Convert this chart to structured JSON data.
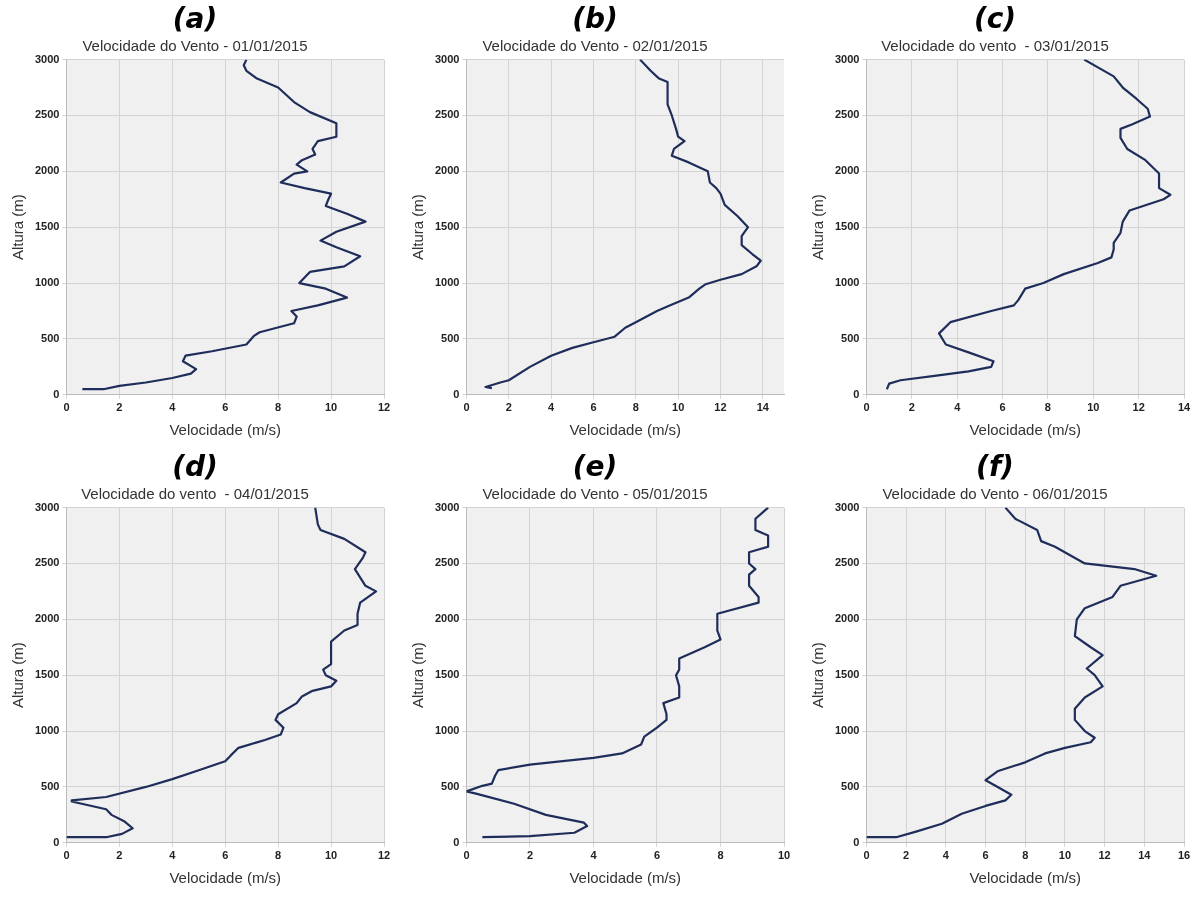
{
  "chart_data": [
    {
      "type": "line",
      "title": "(a)",
      "subtitle": "Velocidade do Vento - 01/01/2015",
      "xlabel": "Velocidade (m/s)",
      "ylabel": "Altura (m)",
      "xlim": [
        0,
        12
      ],
      "xticks": [
        0,
        2,
        4,
        6,
        8,
        10,
        12
      ],
      "ylim": [
        0,
        3000
      ],
      "yticks": [
        0,
        500,
        1000,
        1500,
        2000,
        2500,
        3000
      ],
      "grid": true,
      "marker": "none",
      "series": [
        {
          "color": "#1f2d5a",
          "x": [
            0.6,
            1.4,
            2,
            3,
            4,
            4.7,
            4.9,
            4.4,
            4.5,
            5.5,
            6.8,
            7.1,
            7.3,
            8.6,
            8.7,
            8.5,
            9.5,
            10.6,
            9.8,
            8.8,
            9.2,
            10.5,
            11.1,
            10.2,
            9.6,
            10.2,
            11.3,
            10.6,
            9.8,
            9.9,
            10,
            9,
            8.1,
            8.6,
            9.1,
            8.7,
            8.9,
            9.4,
            9.3,
            9.5,
            10.2,
            10.2,
            9.2,
            8.6,
            8,
            7.2,
            6.8,
            6.7,
            6.8
          ],
          "values": [
            50,
            50,
            80,
            110,
            150,
            190,
            230,
            300,
            350,
            390,
            450,
            530,
            560,
            640,
            700,
            750,
            800,
            870,
            950,
            1000,
            1100,
            1150,
            1240,
            1320,
            1380,
            1460,
            1550,
            1620,
            1690,
            1750,
            1800,
            1850,
            1900,
            1980,
            2000,
            2060,
            2100,
            2150,
            2200,
            2270,
            2310,
            2430,
            2530,
            2620,
            2750,
            2830,
            2900,
            2950,
            3000
          ]
        }
      ]
    },
    {
      "type": "line",
      "title": "(b)",
      "subtitle": "Velocidade do Vento - 02/01/2015",
      "xlabel": "Velocidade (m/s)",
      "ylabel": "Altura (m)",
      "xlim": [
        0,
        15
      ],
      "xticks": [
        0,
        2,
        4,
        6,
        8,
        10,
        12,
        14
      ],
      "ylim": [
        0,
        3000
      ],
      "yticks": [
        0,
        500,
        1000,
        1500,
        2000,
        2500,
        3000
      ],
      "grid": true,
      "marker": "none",
      "series": [
        {
          "color": "#1f2d5a",
          "x": [
            1.2,
            0.9,
            1.6,
            2,
            3,
            4,
            5,
            6,
            7,
            7.5,
            8,
            9,
            9.6,
            10.5,
            11,
            11.3,
            12,
            13,
            13.7,
            13.9,
            13.5,
            13,
            13,
            13.3,
            12.8,
            12.2,
            12,
            11.8,
            11.5,
            11.4,
            10.5,
            9.7,
            9.8,
            10.3,
            10,
            9.9,
            9.7,
            9.5,
            9.5,
            9.1,
            8.7,
            8.2
          ],
          "values": [
            60,
            70,
            110,
            130,
            250,
            350,
            420,
            470,
            520,
            600,
            650,
            750,
            800,
            870,
            950,
            990,
            1030,
            1080,
            1150,
            1200,
            1260,
            1340,
            1420,
            1500,
            1600,
            1700,
            1800,
            1850,
            1900,
            2000,
            2080,
            2140,
            2200,
            2270,
            2310,
            2380,
            2500,
            2600,
            2800,
            2830,
            2900,
            3000
          ]
        }
      ]
    },
    {
      "type": "line",
      "title": "(c)",
      "subtitle": "Velocidade do vento  - 03/01/2015",
      "xlabel": "Velocidade (m/s)",
      "ylabel": "Altura (m)",
      "xlim": [
        0,
        14
      ],
      "xticks": [
        0,
        2,
        4,
        6,
        8,
        10,
        12,
        14
      ],
      "ylim": [
        0,
        3000
      ],
      "yticks": [
        0,
        500,
        1000,
        1500,
        2000,
        2500,
        3000
      ],
      "grid": true,
      "marker": "none",
      "series": [
        {
          "color": "#1f2d5a",
          "x": [
            0.9,
            1,
            1.5,
            3,
            4.5,
            5.5,
            5.6,
            4.5,
            3.5,
            3.2,
            3.7,
            5.5,
            6.5,
            6.7,
            7,
            7.8,
            8.7,
            10.2,
            10.8,
            10.9,
            10.9,
            11.2,
            11.3,
            11.6,
            13.1,
            13.4,
            12.9,
            12.9,
            12.3,
            11.5,
            11.2,
            11.2,
            11.7,
            12.5,
            12.4,
            11.9,
            11.3,
            10.9,
            9.6
          ],
          "values": [
            50,
            100,
            130,
            170,
            210,
            250,
            300,
            380,
            450,
            550,
            650,
            750,
            800,
            850,
            950,
            1000,
            1080,
            1180,
            1230,
            1300,
            1360,
            1450,
            1550,
            1650,
            1750,
            1790,
            1850,
            1980,
            2100,
            2200,
            2300,
            2380,
            2420,
            2490,
            2560,
            2650,
            2750,
            2850,
            3000
          ]
        }
      ]
    },
    {
      "type": "line",
      "title": "(d)",
      "subtitle": "Velocidade do vento  - 04/01/2015",
      "xlabel": "Velocidade (m/s)",
      "ylabel": "Altura (m)",
      "xlim": [
        0,
        12
      ],
      "xticks": [
        0,
        2,
        4,
        6,
        8,
        10,
        12
      ],
      "ylim": [
        0,
        3000
      ],
      "yticks": [
        0,
        500,
        1000,
        1500,
        2000,
        2500,
        3000
      ],
      "grid": true,
      "marker": "none",
      "series": [
        {
          "color": "#1f2d5a",
          "x": [
            0,
            1.5,
            2.1,
            2.5,
            2.2,
            1.7,
            1.5,
            0.2,
            0.2,
            1.5,
            3,
            4,
            5,
            6,
            6.2,
            6.5,
            7.5,
            8.1,
            8.2,
            7.9,
            8,
            8.7,
            8.9,
            9.3,
            10,
            10.2,
            9.8,
            9.7,
            10,
            10,
            10.5,
            11,
            11,
            11.1,
            11.7,
            11.3,
            10.9,
            11.2,
            11.3,
            10.5,
            9.6,
            9.5,
            9.4
          ],
          "values": [
            50,
            50,
            80,
            130,
            190,
            250,
            300,
            370,
            380,
            410,
            500,
            570,
            650,
            730,
            780,
            850,
            920,
            970,
            1030,
            1100,
            1150,
            1250,
            1310,
            1360,
            1400,
            1450,
            1500,
            1550,
            1600,
            1800,
            1900,
            1950,
            2050,
            2150,
            2250,
            2300,
            2450,
            2550,
            2600,
            2720,
            2800,
            2850,
            3000
          ]
        }
      ]
    },
    {
      "type": "line",
      "title": "(e)",
      "subtitle": "Velocidade do Vento - 05/01/2015",
      "xlabel": "Velocidade (m/s)",
      "ylabel": "Altura (m)",
      "xlim": [
        0,
        10
      ],
      "xticks": [
        0,
        2,
        4,
        6,
        8,
        10
      ],
      "ylim": [
        0,
        3000
      ],
      "yticks": [
        0,
        500,
        1000,
        1500,
        2000,
        2500,
        3000
      ],
      "grid": true,
      "marker": "none",
      "series": [
        {
          "color": "#1f2d5a",
          "x": [
            0.5,
            2,
            3.4,
            3.8,
            3.7,
            2.5,
            1.5,
            0.3,
            0,
            0.5,
            0.8,
            0.9,
            1,
            2,
            4,
            4.9,
            5.5,
            5.6,
            6,
            6.3,
            6.3,
            6.2,
            6.7,
            6.7,
            6.6,
            6.7,
            6.7,
            7.5,
            8,
            7.9,
            7.9,
            9.2,
            9.2,
            8.9,
            8.9,
            9.1,
            8.9,
            8.9,
            9.5,
            9.5,
            9.1,
            9.1,
            9.5
          ],
          "values": [
            50,
            60,
            90,
            150,
            180,
            250,
            350,
            440,
            460,
            510,
            530,
            600,
            650,
            700,
            760,
            800,
            880,
            950,
            1030,
            1100,
            1150,
            1250,
            1300,
            1400,
            1500,
            1550,
            1650,
            1750,
            1820,
            1900,
            2050,
            2150,
            2200,
            2300,
            2400,
            2450,
            2500,
            2600,
            2650,
            2750,
            2800,
            2900,
            3000
          ]
        }
      ]
    },
    {
      "type": "line",
      "title": "(f)",
      "subtitle": "Velocidade do Vento - 06/01/2015",
      "xlabel": "Velocidade (m/s)",
      "ylabel": "Altura (m)",
      "xlim": [
        0,
        16
      ],
      "xticks": [
        0,
        2,
        4,
        6,
        8,
        10,
        12,
        14,
        16
      ],
      "ylim": [
        0,
        3000
      ],
      "yticks": [
        0,
        500,
        1000,
        1500,
        2000,
        2500,
        3000
      ],
      "grid": true,
      "marker": "none",
      "series": [
        {
          "color": "#1f2d5a",
          "x": [
            0,
            1.5,
            2.5,
            3.8,
            4.8,
            6,
            7,
            7.3,
            6.5,
            6,
            6.6,
            8,
            9,
            10,
            11.3,
            11.5,
            11,
            10.5,
            10.5,
            11,
            11.9,
            11.5,
            11.1,
            11.9,
            11.3,
            10.5,
            10.6,
            11,
            12.4,
            12.8,
            14.6,
            13.5,
            11,
            9.5,
            8.8,
            8.6,
            7.5,
            7
          ],
          "values": [
            50,
            50,
            100,
            170,
            260,
            330,
            380,
            430,
            510,
            560,
            640,
            720,
            800,
            850,
            900,
            940,
            1000,
            1100,
            1200,
            1300,
            1400,
            1500,
            1560,
            1680,
            1750,
            1850,
            2000,
            2100,
            2200,
            2300,
            2390,
            2450,
            2500,
            2650,
            2700,
            2800,
            2900,
            3000
          ]
        }
      ]
    }
  ]
}
